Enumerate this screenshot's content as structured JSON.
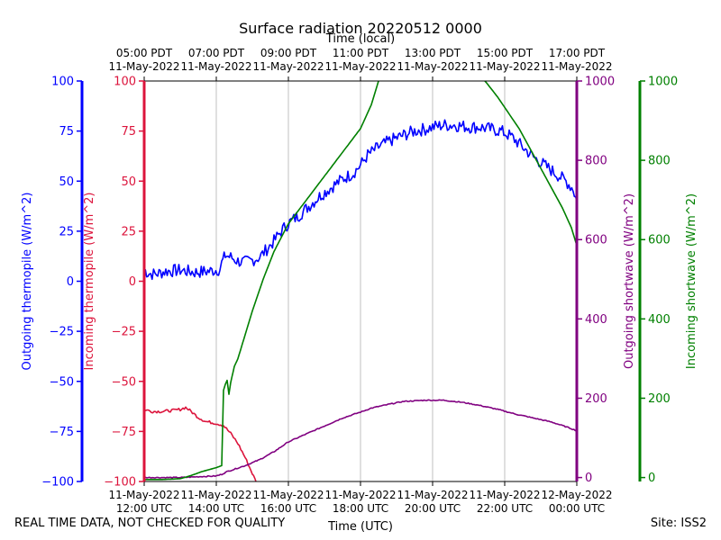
{
  "chart_data": {
    "type": "line",
    "title": "Surface radiation 20220512 0000",
    "top_axis_label": "Time (local)",
    "xlabel": "Time (UTC)",
    "footer_left": "REAL TIME DATA, NOT CHECKED FOR QUALITY",
    "footer_right": "Site: ISS2",
    "x_range_hours_utc": [
      12,
      24
    ],
    "x_ticks_utc": [
      {
        "hour": 12,
        "line1": "11-May-2022",
        "line2": "12:00 UTC"
      },
      {
        "hour": 14,
        "line1": "11-May-2022",
        "line2": "14:00 UTC"
      },
      {
        "hour": 16,
        "line1": "11-May-2022",
        "line2": "16:00 UTC"
      },
      {
        "hour": 18,
        "line1": "11-May-2022",
        "line2": "18:00 UTC"
      },
      {
        "hour": 20,
        "line1": "11-May-2022",
        "line2": "20:00 UTC"
      },
      {
        "hour": 22,
        "line1": "11-May-2022",
        "line2": "22:00 UTC"
      },
      {
        "hour": 24,
        "line1": "12-May-2022",
        "line2": "00:00 UTC"
      }
    ],
    "x_ticks_local": [
      {
        "hour": 12,
        "line1": "05:00 PDT",
        "line2": "11-May-2022"
      },
      {
        "hour": 14,
        "line1": "07:00 PDT",
        "line2": "11-May-2022"
      },
      {
        "hour": 16,
        "line1": "09:00 PDT",
        "line2": "11-May-2022"
      },
      {
        "hour": 18,
        "line1": "11:00 PDT",
        "line2": "11-May-2022"
      },
      {
        "hour": 20,
        "line1": "13:00 PDT",
        "line2": "11-May-2022"
      },
      {
        "hour": 22,
        "line1": "15:00 PDT",
        "line2": "11-May-2022"
      },
      {
        "hour": 24,
        "line1": "17:00 PDT",
        "line2": "11-May-2022"
      }
    ],
    "axes": [
      {
        "id": "out_thermo",
        "label": "Outgoing thermopile (W/m^2)",
        "color": "#0000ff",
        "side": "left",
        "range": [
          -100,
          100
        ],
        "ticks": [
          -100,
          -75,
          -50,
          -25,
          0,
          25,
          50,
          75,
          100
        ]
      },
      {
        "id": "in_thermo",
        "label": "Incoming thermopile (W/m^2)",
        "color": "#dc143c",
        "side": "left",
        "range": [
          -100,
          100
        ],
        "ticks": [
          -100,
          -75,
          -50,
          -25,
          0,
          25,
          50,
          75,
          100
        ]
      },
      {
        "id": "out_sw",
        "label": "Outgoing shortwave (W/m^2)",
        "color": "#800080",
        "side": "right",
        "range": [
          -10,
          1000
        ],
        "ticks": [
          0,
          200,
          400,
          600,
          800,
          1000
        ]
      },
      {
        "id": "in_sw",
        "label": "Incoming shortwave (W/m^2)",
        "color": "#008000",
        "side": "right",
        "range": [
          -10,
          1000
        ],
        "ticks": [
          0,
          200,
          400,
          600,
          800,
          1000
        ]
      }
    ],
    "series": [
      {
        "name": "Outgoing thermopile",
        "axis": "out_thermo",
        "color": "#0000ff",
        "noise": 3.2,
        "points": [
          [
            12,
            6
          ],
          [
            12.1,
            4
          ],
          [
            12.3,
            3.5
          ],
          [
            12.6,
            5
          ],
          [
            13,
            5.5
          ],
          [
            13.4,
            4.5
          ],
          [
            13.8,
            5
          ],
          [
            14.1,
            6
          ],
          [
            14.15,
            9
          ],
          [
            14.25,
            13
          ],
          [
            14.4,
            12
          ],
          [
            14.6,
            10
          ],
          [
            14.8,
            9.5
          ],
          [
            15,
            10.5
          ],
          [
            15.2,
            12
          ],
          [
            15.4,
            16
          ],
          [
            15.6,
            20
          ],
          [
            15.8,
            25
          ],
          [
            16,
            29
          ],
          [
            16.3,
            33
          ],
          [
            16.6,
            38
          ],
          [
            16.9,
            43
          ],
          [
            17.2,
            47
          ],
          [
            17.5,
            51
          ],
          [
            17.8,
            54
          ],
          [
            18,
            58
          ],
          [
            18.2,
            63
          ],
          [
            18.5,
            67
          ],
          [
            18.8,
            70
          ],
          [
            19.2,
            73
          ],
          [
            19.5,
            75
          ],
          [
            19.8,
            76
          ],
          [
            20,
            77
          ],
          [
            20.3,
            78
          ],
          [
            20.6,
            78
          ],
          [
            21,
            77
          ],
          [
            21.3,
            77
          ],
          [
            21.6,
            76
          ],
          [
            21.9,
            75
          ],
          [
            22.2,
            72
          ],
          [
            22.5,
            67
          ],
          [
            22.8,
            62
          ],
          [
            23.1,
            58
          ],
          [
            23.4,
            54
          ],
          [
            23.7,
            50
          ],
          [
            23.9,
            46
          ],
          [
            24,
            40
          ]
        ]
      },
      {
        "name": "Incoming thermopile",
        "axis": "in_thermo",
        "color": "#dc143c",
        "noise": 0.7,
        "points": [
          [
            12,
            -64
          ],
          [
            12.2,
            -65
          ],
          [
            12.5,
            -65
          ],
          [
            12.8,
            -64.5
          ],
          [
            13,
            -64
          ],
          [
            13.15,
            -63
          ],
          [
            13.3,
            -65
          ],
          [
            13.5,
            -68
          ],
          [
            13.7,
            -70
          ],
          [
            14,
            -71
          ],
          [
            14.2,
            -72
          ],
          [
            14.4,
            -76
          ],
          [
            14.6,
            -81
          ],
          [
            14.8,
            -88
          ],
          [
            15,
            -96
          ],
          [
            15.1,
            -100
          ]
        ]
      },
      {
        "name": "Outgoing shortwave",
        "axis": "out_sw",
        "color": "#800080",
        "noise": 1.2,
        "points": [
          [
            12,
            0
          ],
          [
            13,
            0
          ],
          [
            13.5,
            2
          ],
          [
            14,
            4
          ],
          [
            14.15,
            8
          ],
          [
            14.3,
            15
          ],
          [
            14.8,
            30
          ],
          [
            15.2,
            45
          ],
          [
            15.6,
            65
          ],
          [
            16,
            90
          ],
          [
            16.5,
            110
          ],
          [
            17,
            130
          ],
          [
            17.5,
            150
          ],
          [
            18,
            165
          ],
          [
            18.3,
            175
          ],
          [
            18.8,
            185
          ],
          [
            19.2,
            192
          ],
          [
            19.8,
            195
          ],
          [
            20.3,
            195
          ],
          [
            20.8,
            190
          ],
          [
            21.3,
            182
          ],
          [
            21.8,
            172
          ],
          [
            22.3,
            160
          ],
          [
            22.8,
            150
          ],
          [
            23.3,
            140
          ],
          [
            23.8,
            125
          ],
          [
            24,
            118
          ]
        ]
      },
      {
        "name": "Incoming shortwave",
        "axis": "in_sw",
        "color": "#008000",
        "noise": 0,
        "points": [
          [
            12,
            -5
          ],
          [
            12.5,
            -5
          ],
          [
            13,
            -3
          ],
          [
            13.3,
            5
          ],
          [
            13.6,
            15
          ],
          [
            14,
            25
          ],
          [
            14.15,
            30
          ],
          [
            14.2,
            220
          ],
          [
            14.25,
            235
          ],
          [
            14.3,
            245
          ],
          [
            14.35,
            210
          ],
          [
            14.4,
            240
          ],
          [
            14.5,
            280
          ],
          [
            14.6,
            300
          ],
          [
            14.7,
            330
          ],
          [
            14.8,
            360
          ],
          [
            15,
            420
          ],
          [
            15.3,
            500
          ],
          [
            15.6,
            570
          ],
          [
            16,
            640
          ],
          [
            16.5,
            700
          ],
          [
            17,
            760
          ],
          [
            17.5,
            820
          ],
          [
            18,
            880
          ],
          [
            18.3,
            940
          ],
          [
            18.5,
            1000
          ],
          [
            18.6,
            1010
          ]
        ]
      },
      {
        "name": "Incoming shortwave",
        "axis": "in_sw",
        "color": "#008000",
        "noise": 0,
        "points": [
          [
            21.35,
            1010
          ],
          [
            21.5,
            995
          ],
          [
            21.8,
            960
          ],
          [
            22.1,
            920
          ],
          [
            22.4,
            880
          ],
          [
            22.7,
            830
          ],
          [
            23,
            780
          ],
          [
            23.3,
            730
          ],
          [
            23.6,
            680
          ],
          [
            23.85,
            630
          ],
          [
            24,
            585
          ]
        ]
      }
    ]
  }
}
